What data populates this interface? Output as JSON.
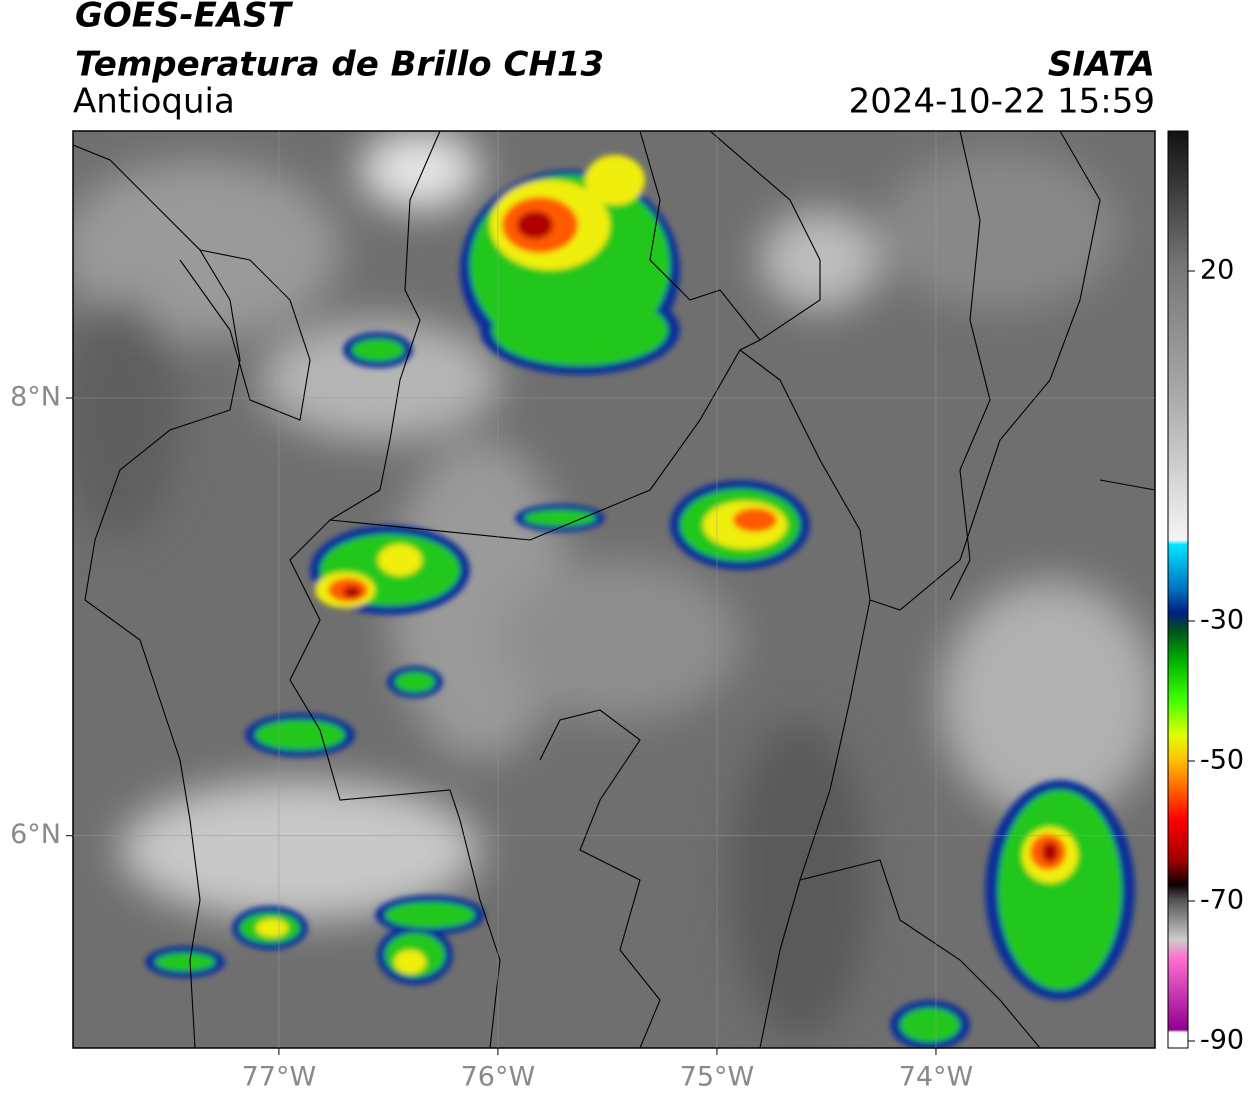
{
  "header": {
    "title": "GOES-EAST",
    "subtitle": "Temperatura de Brillo CH13",
    "region": "Antioquia",
    "source": "SIATA",
    "datetime": "2024-10-22 15:59"
  },
  "map": {
    "xlim": [
      -77.94,
      -73.0
    ],
    "ylim": [
      5.03,
      9.22
    ],
    "xticks": [
      {
        "value": -77,
        "label": "77°W"
      },
      {
        "value": -76,
        "label": "76°W"
      },
      {
        "value": -75,
        "label": "75°W"
      },
      {
        "value": -74,
        "label": "74°W"
      }
    ],
    "yticks": [
      {
        "value": 8,
        "label": "8°N"
      },
      {
        "value": 6,
        "label": "6°N"
      }
    ]
  },
  "colorbar": {
    "lim": [
      -91,
      40
    ],
    "ticks": [
      20,
      -30,
      -50,
      -70,
      -90
    ]
  }
}
